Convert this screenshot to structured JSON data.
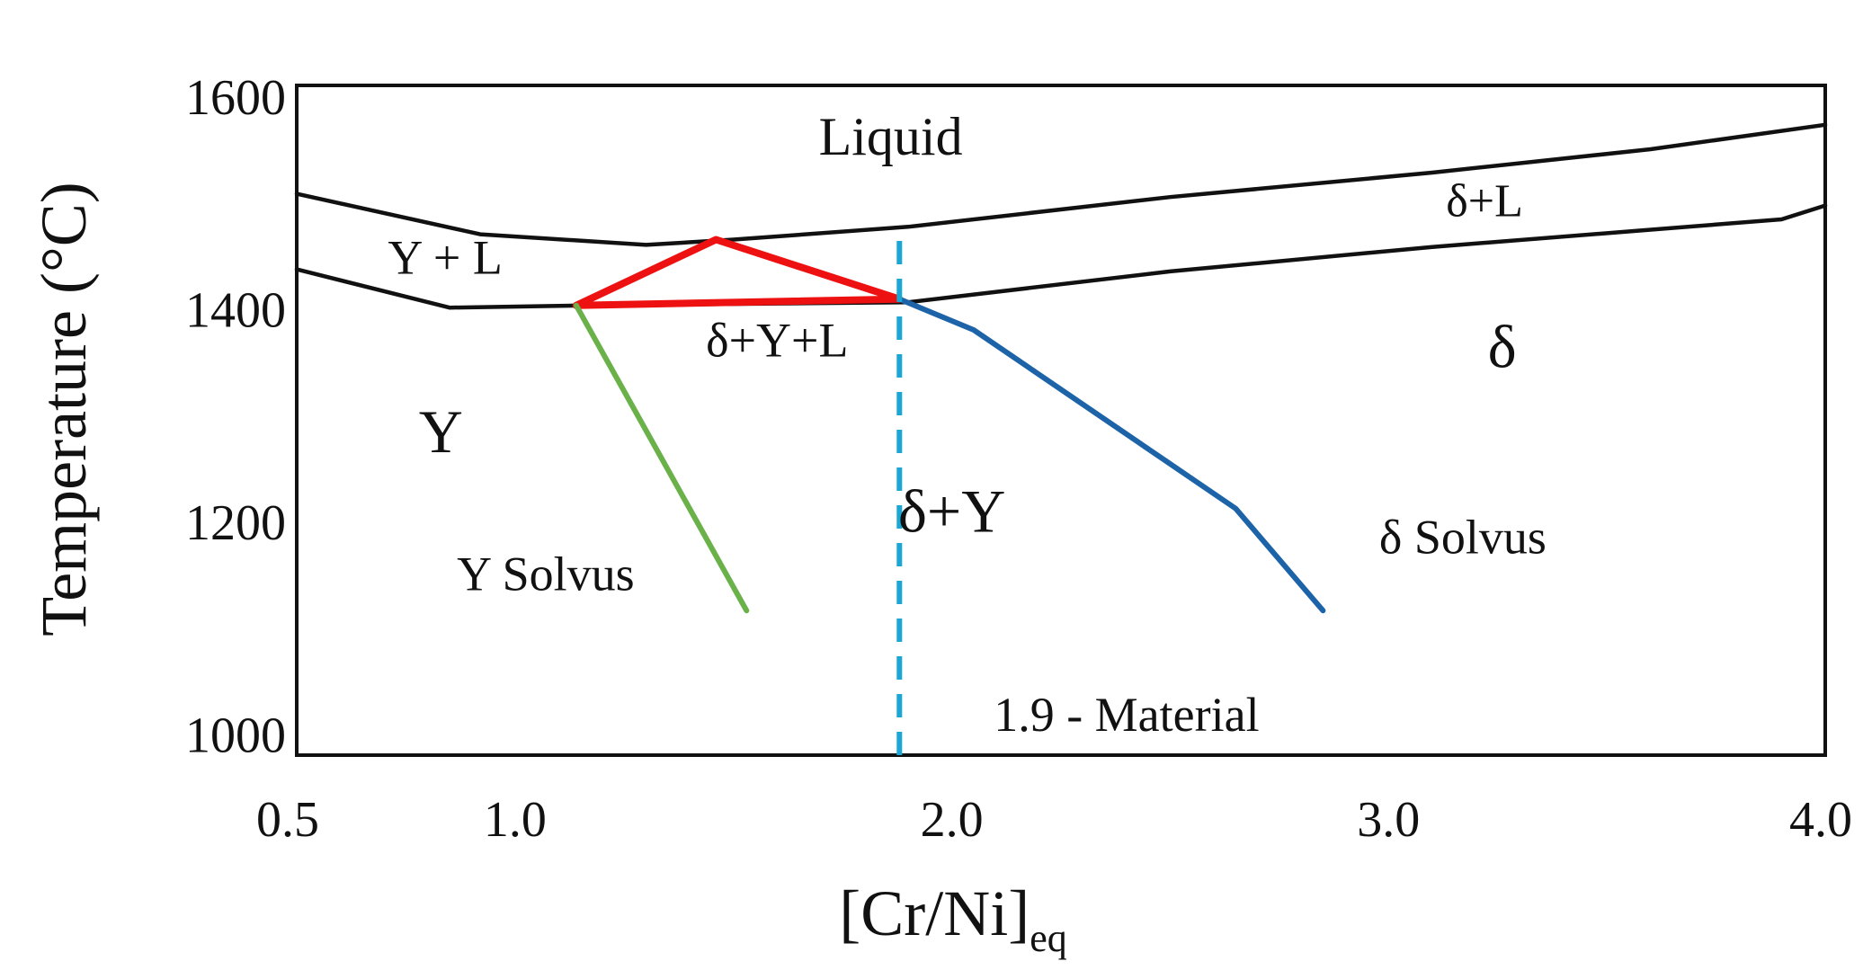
{
  "chart_data": {
    "type": "line",
    "title": "",
    "xlabel": "[Cr/Ni]",
    "xlabel_subscript": "eq",
    "ylabel": "Temperature (°C)",
    "xlim": [
      0.5,
      4.0
    ],
    "ylim": [
      980,
      1610
    ],
    "xticks": [
      "0.5",
      "1.0",
      "2.0",
      "3.0",
      "4.0"
    ],
    "xtick_values": [
      0.5,
      1.0,
      2.0,
      3.0,
      4.0
    ],
    "yticks": [
      "1000",
      "1200",
      "1400",
      "1600"
    ],
    "ytick_values": [
      1000,
      1200,
      1400,
      1600
    ],
    "grid": false,
    "series": [
      {
        "key": "liquidus",
        "color": "#111111",
        "style": "solid",
        "x": [
          0.5,
          0.92,
          1.3,
          1.5,
          1.9,
          2.5,
          3.1,
          3.6,
          4.0
        ],
        "y": [
          1508,
          1470,
          1460,
          1465,
          1477,
          1505,
          1528,
          1550,
          1573
        ]
      },
      {
        "key": "solidus",
        "color": "#111111",
        "style": "solid",
        "x": [
          0.5,
          0.85,
          1.15,
          1.9,
          2.5,
          3.1,
          3.9,
          4.0
        ],
        "y": [
          1437,
          1401,
          1403,
          1406,
          1435,
          1458,
          1484,
          1497
        ]
      },
      {
        "key": "three-phase-triangle",
        "color": "#ee1111",
        "style": "solid",
        "x": [
          1.14,
          1.46,
          1.88,
          1.14
        ],
        "y": [
          1403,
          1465,
          1409,
          1403
        ]
      },
      {
        "key": "gamma-solvus",
        "color": "#6bb14a",
        "style": "solid",
        "x": [
          1.14,
          1.53
        ],
        "y": [
          1403,
          1116
        ]
      },
      {
        "key": "delta-solvus",
        "color": "#1c63a8",
        "style": "solid",
        "x": [
          1.88,
          2.05,
          2.65,
          2.85
        ],
        "y": [
          1409,
          1380,
          1212,
          1116
        ]
      },
      {
        "key": "material-1.9",
        "color": "#1aa7d4",
        "style": "dashed",
        "x": [
          1.88,
          1.88
        ],
        "y": [
          980,
          1477
        ]
      }
    ],
    "annotations": [
      {
        "text": "Liquid",
        "x": 1.86,
        "y": 1545,
        "color": "#111111",
        "size": 60
      },
      {
        "text": "Y + L",
        "x": 0.84,
        "y": 1433,
        "color": "#111111",
        "size": 54
      },
      {
        "text": "δ+L",
        "x": 3.22,
        "y": 1487,
        "color": "#111111",
        "size": 52
      },
      {
        "text": "δ+Y+L",
        "x": 1.6,
        "y": 1355,
        "color": "#ee1111",
        "size": 54
      },
      {
        "text": "δ",
        "x": 3.26,
        "y": 1345,
        "color": "#111111",
        "size": 68
      },
      {
        "text": "Y",
        "x": 0.83,
        "y": 1265,
        "color": "#111111",
        "size": 68
      },
      {
        "text": "δ+Y",
        "x": 2.0,
        "y": 1190,
        "color": "#111111",
        "size": 68
      },
      {
        "text": "Y Solvus",
        "x": 1.07,
        "y": 1135,
        "color": "#6bb14a",
        "size": 54
      },
      {
        "text": "δ Solvus",
        "x": 3.17,
        "y": 1170,
        "color": "#1c63a8",
        "size": 54
      },
      {
        "text": "1.9 - Material",
        "x": 2.4,
        "y": 1003,
        "color": "#1aa7d4",
        "size": 54
      }
    ]
  }
}
